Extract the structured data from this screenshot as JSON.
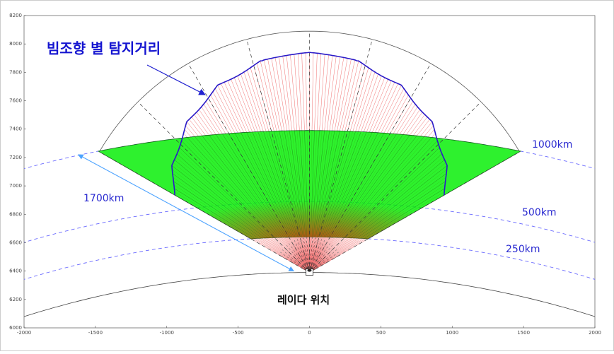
{
  "chart_data": {
    "type": "diagram",
    "title": "빔조향 별 탐지거리",
    "annotations": [
      "1000km",
      "500km",
      "250km",
      "1700km",
      "레이다 위치"
    ],
    "xlim": [
      -2000,
      2000
    ],
    "ylim": [
      6000,
      8200
    ],
    "xticks": [
      -2000,
      -1500,
      -1000,
      -500,
      0,
      500,
      1000,
      1500,
      2000
    ],
    "yticks": [
      6000,
      6200,
      6400,
      6600,
      6800,
      7000,
      7200,
      7400,
      7600,
      7800,
      8000,
      8200
    ]
  }
}
